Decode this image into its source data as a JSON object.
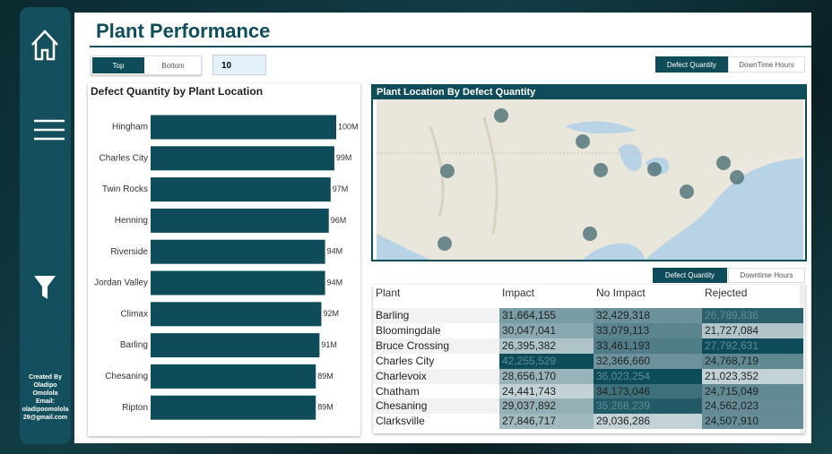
{
  "sidebar": {
    "credit": [
      "Created By",
      "Oladipo",
      "Omolola",
      "Email:",
      "oladipoomolola",
      "29@gmail.com"
    ]
  },
  "header": {
    "title": "Plant Performance"
  },
  "controls": {
    "rank_options": [
      "Top",
      "Bottom"
    ],
    "rank_count": "10",
    "metric_options": [
      "Defect Quantity",
      "DownTime Hours"
    ]
  },
  "bar_chart": {
    "type": "bar",
    "title": "Defect Quantity by Plant Location",
    "categories": [
      "Hingham",
      "Charles City",
      "Twin Rocks",
      "Henning",
      "Riverside",
      "Jordan Valley",
      "Climax",
      "Barling",
      "Chesaning",
      "Ripton"
    ],
    "values": [
      100,
      99,
      97,
      96,
      94,
      94,
      92,
      91,
      89,
      89
    ],
    "value_labels": [
      "100M",
      "99M",
      "97M",
      "96M",
      "94M",
      "94M",
      "92M",
      "91M",
      "89M",
      "89M"
    ],
    "color": "#0f4c5a"
  },
  "map": {
    "title": "Plant Location By Defect Quantity"
  },
  "table_controls": {
    "metric_options": [
      "Defect Quantity",
      "Downtime Hours"
    ]
  },
  "table": {
    "columns": [
      "Plant",
      "Impact",
      "No Impact",
      "Rejected"
    ],
    "rows": [
      [
        "Barling",
        "31,664,155",
        "32,429,318",
        "26,789,836"
      ],
      [
        "Bloomingdale",
        "30,047,041",
        "33,079,113",
        "21,727,084"
      ],
      [
        "Bruce Crossing",
        "26,395,382",
        "33,461,193",
        "27,792,631"
      ],
      [
        "Charles City",
        "42,255,529",
        "32,366,660",
        "24,768,719"
      ],
      [
        "Charlevoix",
        "28,656,170",
        "36,023,254",
        "21,023,352"
      ],
      [
        "Chatham",
        "24,441,743",
        "34,173,046",
        "24,715,049"
      ],
      [
        "Chesaning",
        "29,037,892",
        "35,268,239",
        "24,562,023"
      ],
      [
        "Clarksville",
        "27,846,717",
        "29,036,286",
        "24,507,910"
      ]
    ]
  }
}
